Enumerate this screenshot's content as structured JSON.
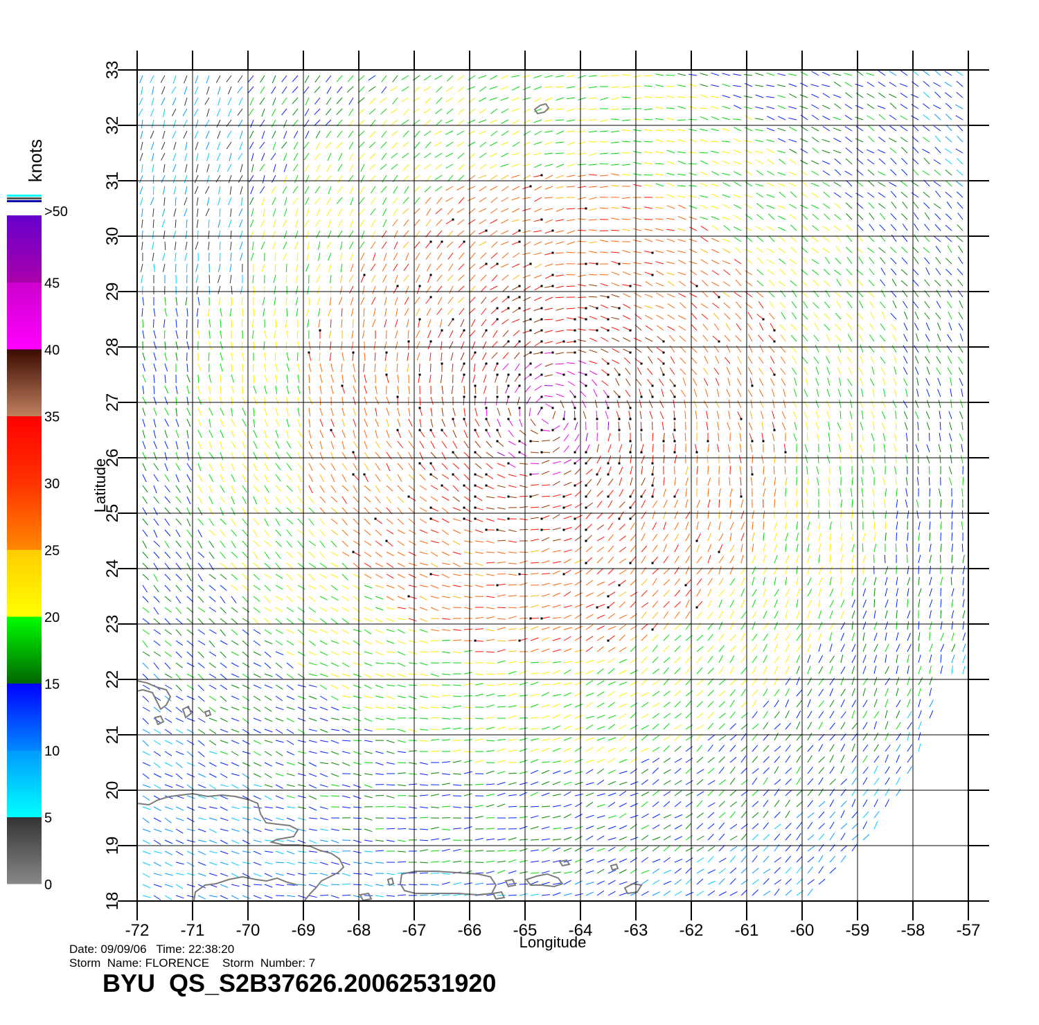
{
  "map": {
    "lon_range": [
      -72,
      -57
    ],
    "lat_range": [
      18,
      33
    ],
    "lon_ticks": [
      "-72",
      "-71",
      "-70",
      "-69",
      "-68",
      "-67",
      "-66",
      "-65",
      "-64",
      "-63",
      "-62",
      "-61",
      "-60",
      "-59",
      "-58",
      "-57"
    ],
    "lat_ticks": [
      "18",
      "19",
      "20",
      "21",
      "22",
      "23",
      "24",
      "25",
      "26",
      "27",
      "28",
      "29",
      "30",
      "31",
      "32",
      "33"
    ],
    "xlabel": "Longitude",
    "ylabel": "Latitude",
    "storm_center": {
      "lon": -64.6,
      "lat": 26.8
    },
    "grid": true,
    "land_outline_color": "#7a7a7a",
    "rain_flag_color": "#000000"
  },
  "colorbar": {
    "unit": "knots",
    "top_label": ">50",
    "labels": [
      "0",
      "5",
      "10",
      "15",
      "20",
      "25",
      "30",
      "35",
      "40",
      "45"
    ],
    "bands": [
      {
        "min": 0,
        "max": 5,
        "colors": [
          "#888888",
          "#333333"
        ]
      },
      {
        "min": 5,
        "max": 10,
        "colors": [
          "#00ffff",
          "#0099ff"
        ]
      },
      {
        "min": 10,
        "max": 15,
        "colors": [
          "#0088ff",
          "#0000ff"
        ]
      },
      {
        "min": 15,
        "max": 20,
        "colors": [
          "#006600",
          "#00ff00"
        ]
      },
      {
        "min": 20,
        "max": 25,
        "colors": [
          "#ffff00",
          "#ffcc00"
        ]
      },
      {
        "min": 25,
        "max": 30,
        "colors": [
          "#ff8800",
          "#ff3300"
        ]
      },
      {
        "min": 30,
        "max": 35,
        "colors": [
          "#ff3300",
          "#ff0000"
        ]
      },
      {
        "min": 35,
        "max": 40,
        "colors": [
          "#c08060",
          "#3a0a00"
        ]
      },
      {
        "min": 40,
        "max": 45,
        "colors": [
          "#ff00ff",
          "#cc00cc"
        ]
      },
      {
        "min": 45,
        "max": 50,
        "colors": [
          "#aa00aa",
          "#6600cc"
        ]
      }
    ],
    "top_stripe_colors": [
      "#00ffff",
      "#555555",
      "#0000aa"
    ]
  },
  "footer": {
    "date_line": "Date: 09/09/06   Time: 22:38:20",
    "storm_line": "Storm  Name: FLORENCE    Storm  Number: 7",
    "title": "BYU  QS_S2B37626.20062531920"
  }
}
